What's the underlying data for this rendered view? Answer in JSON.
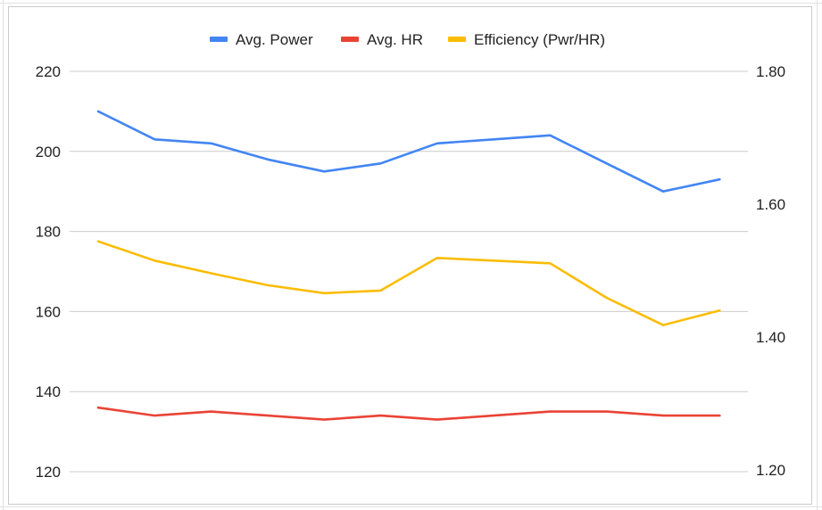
{
  "colors": {
    "power": "#4285F4",
    "hr": "#EA4335",
    "efficiency": "#FBBC04",
    "gridline": "#cccccc"
  },
  "chart_data": {
    "type": "line",
    "title": "",
    "xlabel": "",
    "ylabel": "",
    "legend_position": "top",
    "grid": true,
    "x": [
      1,
      2,
      3,
      4,
      5,
      6,
      7,
      8,
      9,
      10,
      11,
      12
    ],
    "y_left": {
      "min": 110,
      "max": 220,
      "ticks": [
        "220",
        "200",
        "180",
        "160",
        "140",
        "120"
      ],
      "tick_values": [
        220,
        200,
        180,
        160,
        140,
        120
      ]
    },
    "y_right": {
      "min": 1.1,
      "max": 1.8,
      "ticks": [
        "1.80",
        "1.60",
        "1.40",
        "1.20"
      ],
      "tick_values": [
        1.8,
        1.6,
        1.4,
        1.2
      ]
    },
    "series": [
      {
        "name": "Avg. Power",
        "axis": "left",
        "color_key": "power",
        "values": [
          210,
          203,
          202,
          198,
          195,
          197,
          202,
          203,
          204,
          197,
          190,
          193
        ]
      },
      {
        "name": "Avg. HR",
        "axis": "left",
        "color_key": "hr",
        "values": [
          136,
          134,
          135,
          134,
          133,
          134,
          133,
          134,
          135,
          135,
          134,
          134
        ]
      },
      {
        "name": "Efficiency (Pwr/HR)",
        "axis": "right",
        "color_key": "efficiency",
        "values": [
          1.544,
          1.515,
          1.496,
          1.478,
          1.466,
          1.47,
          1.519,
          1.515,
          1.511,
          1.459,
          1.418,
          1.44
        ]
      }
    ]
  }
}
